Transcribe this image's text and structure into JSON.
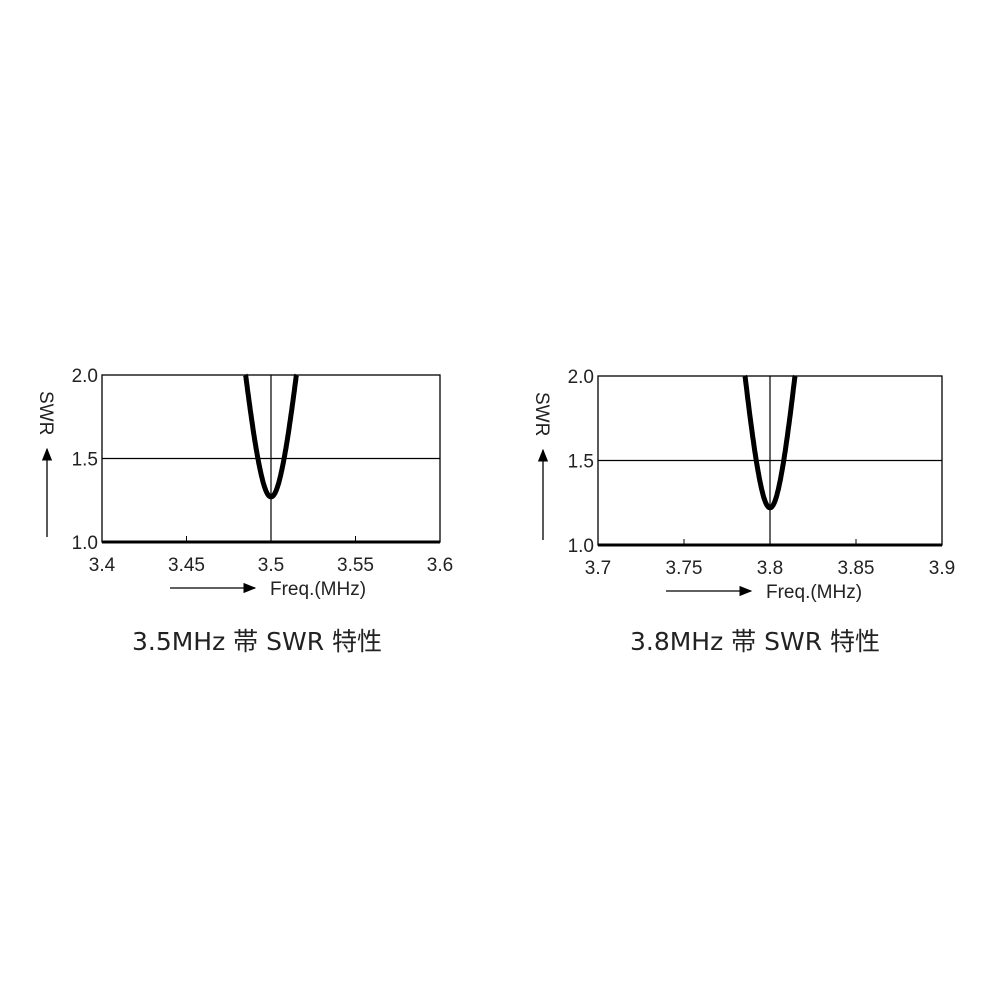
{
  "chart_data": [
    {
      "type": "line",
      "title": "3.5MHz 帯 SWR 特性",
      "xlabel": "Freq.(MHz)",
      "ylabel": "SWR",
      "xlim": [
        3.4,
        3.6
      ],
      "ylim": [
        1.0,
        2.0
      ],
      "xticks": [
        "3.4",
        "3.45",
        "3.5",
        "3.55",
        "3.6"
      ],
      "yticks": [
        "1.0",
        "1.5",
        "2.0"
      ],
      "grid": {
        "horizontal": [
          1.5
        ],
        "vertical": [
          3.5
        ]
      },
      "series": [
        {
          "x": [
            3.486,
            3.493,
            3.5,
            3.507,
            3.516
          ],
          "y": [
            2.0,
            1.6,
            1.27,
            1.6,
            2.0
          ],
          "min_x": 3.5,
          "min_y": 1.27,
          "half_width_at_2": 0.015
        }
      ]
    },
    {
      "type": "line",
      "title": "3.8MHz 帯 SWR 特性",
      "xlabel": "Freq.(MHz)",
      "ylabel": "SWR",
      "xlim": [
        3.7,
        3.9
      ],
      "ylim": [
        1.0,
        2.0
      ],
      "xticks": [
        "3.7",
        "3.75",
        "3.8",
        "3.85",
        "3.9"
      ],
      "yticks": [
        "1.0",
        "1.5",
        "2.0"
      ],
      "grid": {
        "horizontal": [
          1.5
        ],
        "vertical": [
          3.8
        ]
      },
      "series": [
        {
          "x": [
            3.786,
            3.793,
            3.8,
            3.807,
            3.815
          ],
          "y": [
            2.0,
            1.6,
            1.22,
            1.6,
            2.0
          ],
          "min_x": 3.8,
          "min_y": 1.22,
          "half_width_at_2": 0.0145
        }
      ]
    }
  ],
  "colors": {
    "line": "#000000",
    "text": "#222222"
  }
}
